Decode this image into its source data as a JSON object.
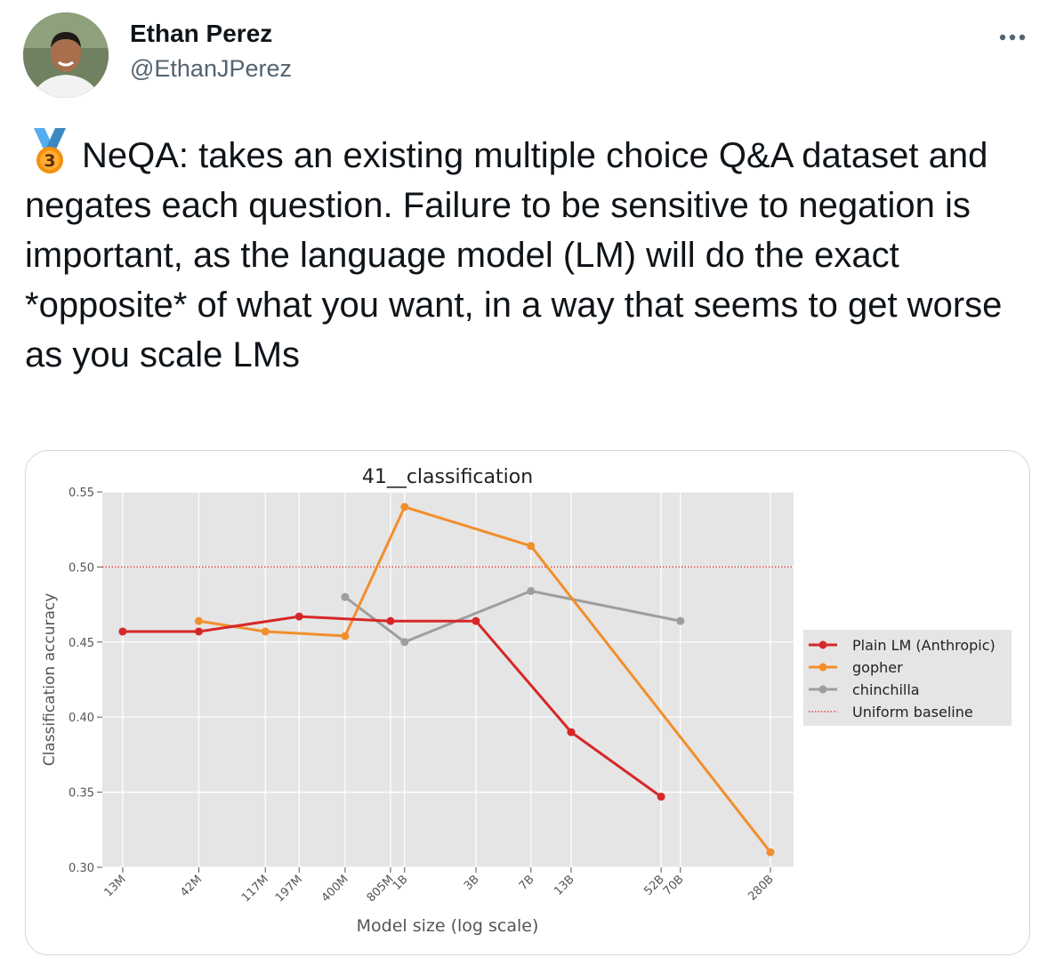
{
  "author": {
    "name": "Ethan Perez",
    "handle": "@EthanJPerez"
  },
  "menu_icon": "more-horizontal-icon",
  "tweet": {
    "medal_icon": "third-place-medal-icon",
    "medal_label": "3",
    "text": "NeQA: takes an existing multiple choice Q&A dataset and negates each question. Failure to be sensitive to negation is important, as the language model (LM) will do the exact *opposite* of what you want, in a way that seems to get worse as you scale LMs"
  },
  "chart_data": {
    "type": "line",
    "title": "41__classification",
    "xlabel": "Model size (log scale)",
    "ylabel": "Classification accuracy",
    "x_scale": "log",
    "ylim": [
      0.3,
      0.55
    ],
    "yticks": [
      0.3,
      0.35,
      0.4,
      0.45,
      0.5,
      0.55
    ],
    "ytick_labels": [
      "0.30",
      "0.35",
      "0.40",
      "0.45",
      "0.50",
      "0.55"
    ],
    "xticks": [
      {
        "label": "13M",
        "value": 13000000
      },
      {
        "label": "42M",
        "value": 42000000
      },
      {
        "label": "117M",
        "value": 117000000
      },
      {
        "label": "197M",
        "value": 197000000
      },
      {
        "label": "400M",
        "value": 400000000
      },
      {
        "label": "805M",
        "value": 805000000
      },
      {
        "label": "1B",
        "value": 1000000000
      },
      {
        "label": "3B",
        "value": 3000000000
      },
      {
        "label": "7B",
        "value": 7000000000
      },
      {
        "label": "13B",
        "value": 13000000000
      },
      {
        "label": "52B",
        "value": 52000000000
      },
      {
        "label": "70B",
        "value": 70000000000
      },
      {
        "label": "280B",
        "value": 280000000000
      }
    ],
    "grid": true,
    "legend_position": "right",
    "series": [
      {
        "name": "Plain LM (Anthropic)",
        "color": "#d62728",
        "x": [
          13000000,
          42000000,
          197000000,
          805000000,
          3000000000,
          13000000000,
          52000000000
        ],
        "y": [
          0.457,
          0.457,
          0.467,
          0.464,
          0.464,
          0.39,
          0.347
        ]
      },
      {
        "name": "gopher",
        "color": "#f28e2b",
        "x": [
          42000000,
          117000000,
          400000000,
          1000000000,
          7000000000,
          280000000000
        ],
        "y": [
          0.464,
          0.457,
          0.454,
          0.54,
          0.514,
          0.31
        ]
      },
      {
        "name": "chinchilla",
        "color": "#9e9e9e",
        "x": [
          400000000,
          1000000000,
          7000000000,
          70000000000
        ],
        "y": [
          0.48,
          0.45,
          0.484,
          0.464
        ]
      }
    ],
    "baseline": {
      "name": "Uniform baseline",
      "value": 0.5,
      "color": "#d62728"
    }
  }
}
